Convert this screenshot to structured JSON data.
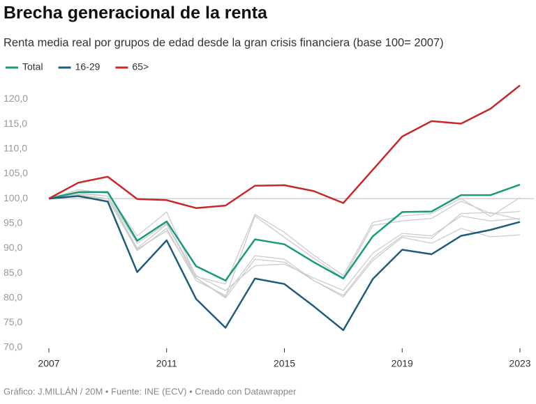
{
  "chart_data": {
    "type": "line",
    "title": "Brecha generacional de la renta",
    "subtitle": "Renta media real por grupos de edad desde la gran crisis financiera (base 100= 2007)",
    "source": "Gráfico: J.MILLÁN / 20M • Fuente: INE (ECV) • Creado con Datawrapper",
    "x": [
      2007,
      2008,
      2009,
      2010,
      2011,
      2012,
      2013,
      2014,
      2015,
      2016,
      2017,
      2018,
      2019,
      2020,
      2021,
      2022,
      2023
    ],
    "xlim": [
      2007,
      2023
    ],
    "xticks": [
      2007,
      2011,
      2015,
      2019,
      2023
    ],
    "ylim": [
      70,
      124
    ],
    "yticks": [
      {
        "value": 70,
        "label": "70,0"
      },
      {
        "value": 75,
        "label": "75,0"
      },
      {
        "value": 80,
        "label": "80,0"
      },
      {
        "value": 85,
        "label": "85,0"
      },
      {
        "value": 90,
        "label": "90,0"
      },
      {
        "value": 95,
        "label": "95,0"
      },
      {
        "value": 100,
        "label": "100,0"
      },
      {
        "value": 105,
        "label": "105,0"
      },
      {
        "value": 110,
        "label": "110,0"
      },
      {
        "value": 115,
        "label": "115,0"
      },
      {
        "value": 120,
        "label": "120,0"
      }
    ],
    "reference_line": 100,
    "grid": false,
    "series": [
      {
        "color": "#cccccc",
        "values": [
          100,
          101.8,
          101,
          92.5,
          97.3,
          84.3,
          82.8,
          96.8,
          93.2,
          88.6,
          84.5,
          95.2,
          96.5,
          97,
          100,
          96.4,
          100.2
        ]
      },
      {
        "color": "#cccccc",
        "values": [
          100,
          101.2,
          100.5,
          90,
          94.8,
          84,
          80.2,
          96.5,
          92.2,
          88,
          84,
          94.6,
          95.5,
          96,
          99.5,
          97,
          97.4
        ]
      },
      {
        "color": "#cccccc",
        "values": [
          100,
          100.8,
          100,
          89.5,
          94,
          83.5,
          80.5,
          88.5,
          87.8,
          83.5,
          80.5,
          88,
          92.5,
          92,
          97,
          97.2,
          95.8
        ]
      },
      {
        "color": "#cccccc",
        "values": [
          100,
          100.5,
          100,
          89.8,
          93.5,
          84,
          80,
          87.8,
          87.2,
          83.5,
          80.2,
          87.5,
          92.2,
          91,
          94,
          92.3,
          92.7
        ]
      },
      {
        "color": "#cccccc",
        "values": [
          100,
          101,
          100.5,
          91,
          95,
          84.5,
          81.5,
          86.5,
          86.8,
          84,
          81.5,
          89,
          93,
          92.5,
          96.5,
          95.5,
          96
        ]
      },
      {
        "name": "Total",
        "color": "#1a9a7c",
        "values": [
          100,
          101.3,
          101.3,
          91.5,
          95.4,
          86.4,
          83.5,
          91.8,
          90.8,
          87.2,
          83.9,
          92.4,
          97.3,
          97.4,
          100.7,
          100.7,
          102.8
        ]
      },
      {
        "name": "16-29",
        "color": "#1d5d7a",
        "values": [
          100,
          100.5,
          99.4,
          85.2,
          91.6,
          79.8,
          74,
          83.9,
          82.8,
          78.3,
          73.5,
          83.8,
          89.7,
          88.8,
          92.5,
          93.7,
          95.3
        ]
      },
      {
        "name": "65>",
        "color": "#c7282b",
        "values": [
          100,
          103.2,
          104.4,
          99.9,
          99.7,
          98.1,
          98.6,
          102.6,
          102.7,
          101.5,
          99.1,
          105.8,
          112.5,
          115.6,
          115.1,
          118.1,
          122.8
        ]
      }
    ]
  }
}
